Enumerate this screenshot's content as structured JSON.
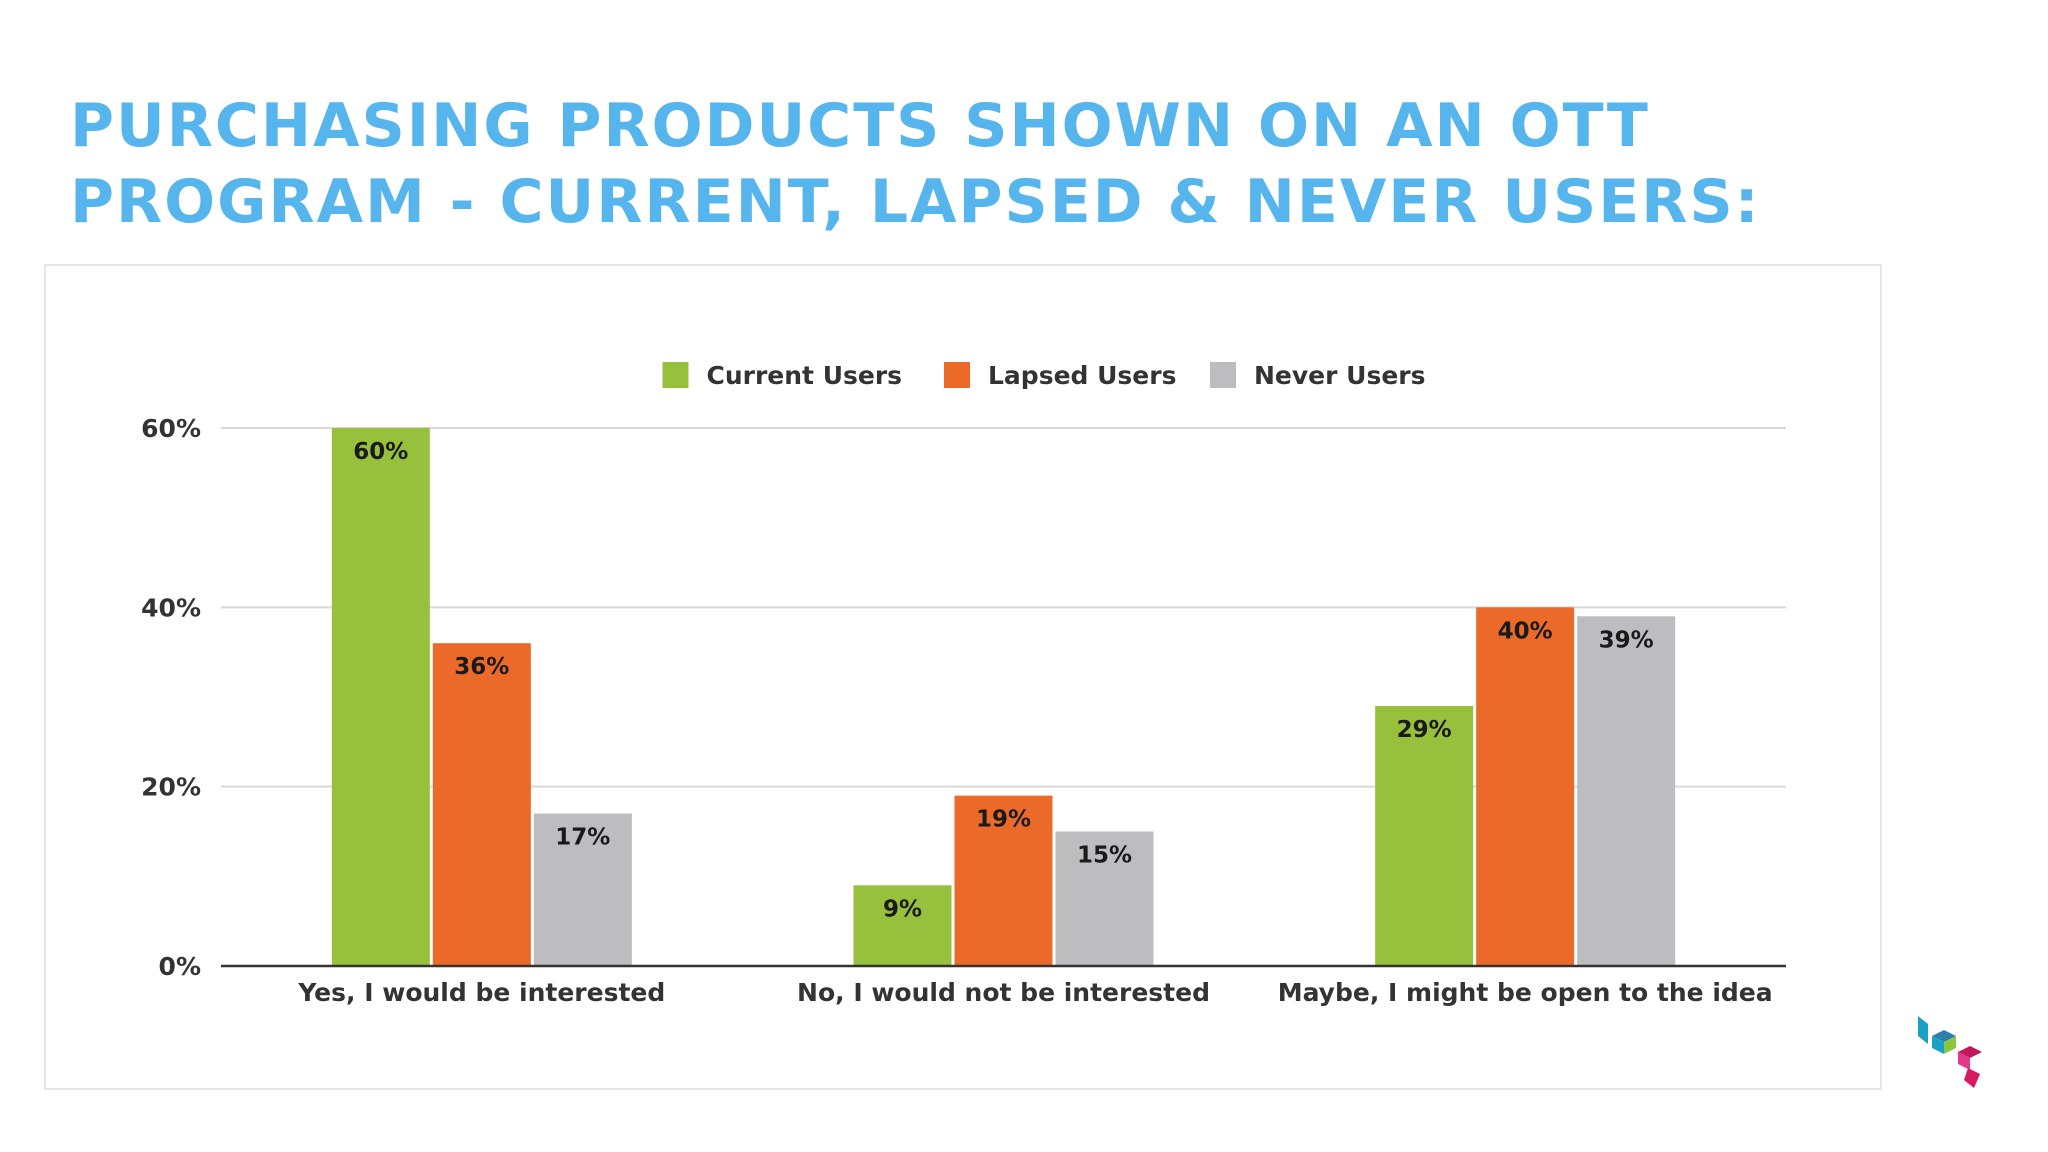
{
  "page": {
    "title_line1": "PURCHASING PRODUCTS SHOWN ON AN OTT",
    "title_line2": "PROGRAM - CURRENT, LAPSED & NEVER USERS:"
  },
  "colors": {
    "title": "#55b5ec",
    "current_users": "#97c03c",
    "lapsed_users": "#eb6a29",
    "never_users": "#bdbcbe",
    "gridline": "#d9d9d9",
    "axis": "#333333"
  },
  "icons": {
    "logo": "stacked-cubes-logo-icon"
  },
  "chart_data": {
    "type": "bar",
    "categories": [
      "Yes, I would be interested",
      "No, I would not be interested",
      "Maybe, I might be open to the idea"
    ],
    "series": [
      {
        "name": "Current Users",
        "values": [
          60,
          9,
          29
        ],
        "labels": [
          "60%",
          "9%",
          "29%"
        ],
        "color": "#97c03c"
      },
      {
        "name": "Lapsed Users",
        "values": [
          36,
          19,
          40
        ],
        "labels": [
          "36%",
          "19%",
          "40%"
        ],
        "color": "#eb6a29"
      },
      {
        "name": "Never Users",
        "values": [
          17,
          15,
          39
        ],
        "labels": [
          "17%",
          "15%",
          "39%"
        ],
        "color": "#bdbcbe"
      }
    ],
    "y_ticks": [
      0,
      20,
      40,
      60
    ],
    "y_tick_labels": [
      "0%",
      "20%",
      "40%",
      "60%"
    ],
    "ylim": [
      0,
      60
    ],
    "grid": true,
    "legend_position": "top-center"
  }
}
